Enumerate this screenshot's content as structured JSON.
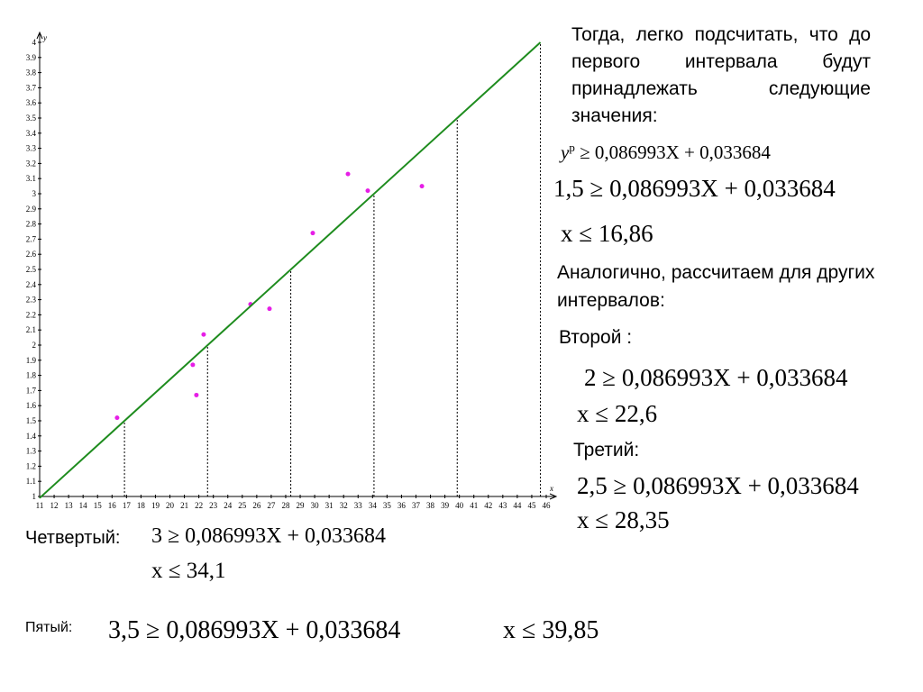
{
  "chart_data": {
    "type": "scatter",
    "x_label": "x",
    "y_label": "y",
    "xlim": [
      11,
      46
    ],
    "ylim": [
      1,
      4
    ],
    "xticks": [
      11,
      12,
      13,
      14,
      15,
      16,
      17,
      18,
      19,
      20,
      21,
      22,
      23,
      24,
      25,
      26,
      27,
      28,
      29,
      30,
      31,
      32,
      33,
      34,
      35,
      36,
      37,
      38,
      39,
      40,
      41,
      42,
      43,
      44,
      45,
      46
    ],
    "yticks": [
      1,
      1.1,
      1.2,
      1.3,
      1.4,
      1.5,
      1.6,
      1.7,
      1.8,
      1.9,
      2,
      2.1,
      2.2,
      2.3,
      2.4,
      2.5,
      2.6,
      2.7,
      2.8,
      2.9,
      3,
      3.1,
      3.2,
      3.3,
      3.4,
      3.5,
      3.6,
      3.7,
      3.8,
      3.9,
      4
    ],
    "series": [
      {
        "type": "scatter",
        "color": "#e61ee6",
        "x": [
          16.35,
          21.58,
          21.83,
          22.33,
          25.57,
          26.88,
          29.87,
          32.3,
          33.67,
          37.41
        ],
        "values": [
          1.52,
          1.87,
          1.67,
          2.07,
          2.27,
          2.24,
          2.74,
          3.13,
          3.02,
          3.05
        ]
      },
      {
        "type": "line",
        "color": "#1e8c1e",
        "x": [
          11,
          45.6
        ],
        "values": [
          0.99,
          4
        ]
      },
      {
        "type": "dropline",
        "color": "#000000",
        "x": [
          16.86,
          22.6,
          28.35,
          34.1,
          39.85,
          45.6
        ],
        "values": [
          1.5,
          2,
          2.5,
          3,
          3.5,
          4
        ]
      }
    ]
  },
  "text": {
    "intro": "Тогда, легко подсчитать, что до первого интервала будут принадлежать следующие значения:",
    "formula_0": {
      "lhs": "y",
      "sup": "p",
      "rhs": " ≥ 0,086993X + 0,033684"
    },
    "formula_1": "1,5 ≥ 0,086993X + 0,033684",
    "result_1": "x ≤ 16,86",
    "similar": "Аналогично, рассчитаем для других интервалов:",
    "second": "Второй :",
    "formula_2": "2 ≥ 0,086993X + 0,033684",
    "result_2": "x ≤ 22,6",
    "third": "Третий:",
    "formula_3": "2,5 ≥ 0,086993X + 0,033684",
    "result_3": "x ≤ 28,35",
    "fourth": "Четвертый:",
    "formula_4": "3 ≥ 0,086993X + 0,033684",
    "result_4": "x ≤ 34,1",
    "fifth": "Пятый:",
    "formula_5": "3,5 ≥ 0,086993X + 0,033684",
    "result_5": "x ≤ 39,85"
  }
}
